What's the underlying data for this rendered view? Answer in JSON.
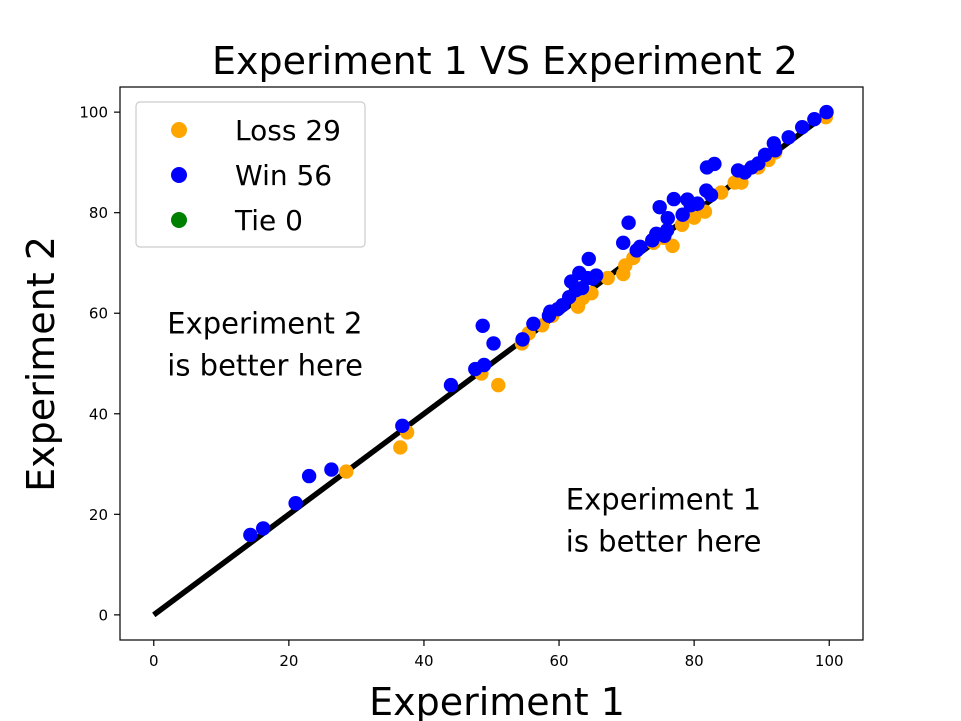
{
  "chart_data": {
    "type": "scatter",
    "title": "Experiment 1 VS Experiment 2",
    "xlabel": "Experiment 1",
    "ylabel": "Experiment 2",
    "xlim": [
      -5,
      105
    ],
    "ylim": [
      -5,
      105
    ],
    "xticks": [
      0,
      20,
      40,
      60,
      80,
      100
    ],
    "yticks": [
      0,
      20,
      40,
      60,
      80,
      100
    ],
    "grid": false,
    "legend_position": "upper-left",
    "reference_line": {
      "x": [
        0,
        100
      ],
      "y": [
        0,
        100
      ],
      "color": "#000000"
    },
    "annotations": [
      {
        "lines": [
          "Experiment 2",
          "is better here"
        ],
        "at": [
          2,
          56
        ]
      },
      {
        "lines": [
          "Experiment 1",
          "is better here"
        ],
        "at": [
          61,
          21
        ]
      }
    ],
    "series": [
      {
        "name": "Loss 29",
        "color": "#ffa500",
        "points": [
          [
            28.5,
            28.5
          ],
          [
            36.5,
            33.3
          ],
          [
            37.5,
            36.3
          ],
          [
            48.5,
            48.0
          ],
          [
            51.0,
            45.7
          ],
          [
            54.5,
            54.0
          ],
          [
            57.5,
            57.6
          ],
          [
            62.8,
            61.3
          ],
          [
            64.8,
            64.0
          ],
          [
            67.2,
            67.0
          ],
          [
            69.5,
            67.8
          ],
          [
            69.8,
            69.5
          ],
          [
            74.0,
            74.0
          ],
          [
            75.5,
            75.0
          ],
          [
            76.8,
            73.4
          ],
          [
            78.2,
            77.6
          ],
          [
            80.0,
            79.0
          ],
          [
            81.6,
            80.2
          ],
          [
            86.0,
            86.0
          ],
          [
            87.0,
            86.0
          ],
          [
            89.5,
            89.0
          ],
          [
            91.0,
            90.5
          ],
          [
            92.0,
            92.0
          ],
          [
            99.5,
            99.0
          ],
          [
            55.5,
            56.0
          ],
          [
            59.0,
            59.5
          ],
          [
            63.5,
            63.0
          ],
          [
            71.0,
            71.0
          ],
          [
            84.0,
            84.0
          ]
        ]
      },
      {
        "name": "Win 56",
        "color": "#0000ff",
        "points": [
          [
            14.3,
            15.9
          ],
          [
            16.2,
            17.2
          ],
          [
            21.0,
            22.2
          ],
          [
            23.0,
            27.6
          ],
          [
            26.3,
            28.9
          ],
          [
            36.8,
            37.6
          ],
          [
            44.0,
            45.7
          ],
          [
            47.6,
            48.9
          ],
          [
            48.7,
            57.5
          ],
          [
            48.9,
            49.7
          ],
          [
            50.3,
            54.0
          ],
          [
            54.6,
            54.8
          ],
          [
            56.2,
            57.9
          ],
          [
            58.7,
            60.3
          ],
          [
            59.8,
            60.8
          ],
          [
            60.5,
            61.6
          ],
          [
            61.5,
            63.2
          ],
          [
            61.8,
            66.3
          ],
          [
            62.5,
            64.6
          ],
          [
            63.0,
            68.0
          ],
          [
            63.4,
            65.0
          ],
          [
            64.2,
            67.0
          ],
          [
            64.4,
            70.8
          ],
          [
            65.0,
            66.9
          ],
          [
            69.5,
            74.0
          ],
          [
            70.3,
            78.0
          ],
          [
            72.0,
            73.2
          ],
          [
            73.8,
            74.5
          ],
          [
            74.4,
            75.8
          ],
          [
            74.9,
            81.1
          ],
          [
            75.6,
            75.4
          ],
          [
            76.1,
            78.9
          ],
          [
            77.0,
            82.7
          ],
          [
            78.3,
            79.6
          ],
          [
            79.0,
            82.6
          ],
          [
            79.5,
            81.5
          ],
          [
            80.5,
            81.8
          ],
          [
            81.8,
            84.4
          ],
          [
            81.9,
            89.0
          ],
          [
            83.0,
            89.7
          ],
          [
            86.5,
            88.4
          ],
          [
            88.5,
            89.0
          ],
          [
            89.5,
            89.8
          ],
          [
            91.8,
            93.8
          ],
          [
            92.0,
            92.4
          ],
          [
            97.8,
            98.6
          ],
          [
            99.6,
            100.0
          ],
          [
            58.5,
            59.5
          ],
          [
            65.5,
            67.5
          ],
          [
            71.5,
            72.5
          ],
          [
            76.0,
            76.5
          ],
          [
            82.5,
            83.5
          ],
          [
            87.5,
            88.0
          ],
          [
            90.5,
            91.5
          ],
          [
            94.0,
            95.0
          ],
          [
            96.0,
            97.0
          ]
        ]
      },
      {
        "name": "Tie 0",
        "color": "#008000",
        "points": []
      }
    ]
  }
}
